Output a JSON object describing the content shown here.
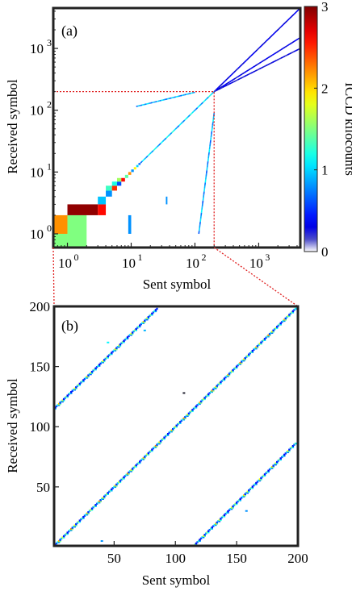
{
  "chart_data": [
    {
      "type": "heatmap",
      "panel_label": "(a)",
      "xlabel": "Sent symbol",
      "ylabel": "Received symbol",
      "x_scale": "log",
      "y_scale": "log",
      "xlim": [
        0.6,
        4500
      ],
      "ylim": [
        0.6,
        4500
      ],
      "x_ticks": [
        {
          "value": 1,
          "label": "10",
          "exp": "0"
        },
        {
          "value": 10,
          "label": "10",
          "exp": "1"
        },
        {
          "value": 100,
          "label": "10",
          "exp": "2"
        },
        {
          "value": 1000,
          "label": "10",
          "exp": "3"
        }
      ],
      "y_ticks": [
        {
          "value": 1,
          "label": "10",
          "exp": "0"
        },
        {
          "value": 10,
          "label": "10",
          "exp": "1"
        },
        {
          "value": 100,
          "label": "10",
          "exp": "2"
        },
        {
          "value": 1000,
          "label": "10",
          "exp": "3"
        }
      ],
      "zoom_box": {
        "x": [
          0.6,
          200
        ],
        "y": [
          0.6,
          200
        ]
      },
      "cells": [
        {
          "x": [
            0.6,
            1
          ],
          "y": [
            0.6,
            1
          ],
          "v": 1.5
        },
        {
          "x": [
            0.6,
            1
          ],
          "y": [
            1,
            2
          ],
          "v": 2.2
        },
        {
          "x": [
            1,
            2
          ],
          "y": [
            0.6,
            1
          ],
          "v": 1.5
        },
        {
          "x": [
            1,
            2
          ],
          "y": [
            1,
            2
          ],
          "v": 1.5
        },
        {
          "x": [
            1,
            3
          ],
          "y": [
            2,
            3
          ],
          "v": 2.95
        },
        {
          "x": [
            3,
            4
          ],
          "y": [
            2,
            3
          ],
          "v": 2.6
        },
        {
          "x": [
            3,
            4
          ],
          "y": [
            3,
            4
          ],
          "v": 0.95
        },
        {
          "x": [
            4,
            5
          ],
          "y": [
            4,
            5
          ],
          "v": 0.8
        },
        {
          "x": [
            4,
            5
          ],
          "y": [
            5,
            6
          ],
          "v": 1.3
        },
        {
          "x": [
            5,
            6
          ],
          "y": [
            5,
            6
          ],
          "v": 2.5
        },
        {
          "x": [
            5,
            6
          ],
          "y": [
            6,
            7
          ],
          "v": 1.2
        },
        {
          "x": [
            6,
            7
          ],
          "y": [
            6,
            7
          ],
          "v": 0.6
        },
        {
          "x": [
            6,
            7
          ],
          "y": [
            7,
            8
          ],
          "v": 1.6
        },
        {
          "x": [
            7,
            8
          ],
          "y": [
            7,
            8
          ],
          "v": 2.6
        },
        {
          "x": [
            8,
            9
          ],
          "y": [
            8,
            9
          ],
          "v": 1.4
        },
        {
          "x": [
            9,
            10
          ],
          "y": [
            9,
            10
          ],
          "v": 2.2
        },
        {
          "x": [
            10,
            11
          ],
          "y": [
            10,
            11
          ],
          "v": 0.8
        },
        {
          "x": [
            11,
            12
          ],
          "y": [
            11,
            12
          ],
          "v": 1.9
        },
        {
          "x": [
            12,
            13
          ],
          "y": [
            12,
            13
          ],
          "v": 1.0
        },
        {
          "x": [
            13,
            14
          ],
          "y": [
            13,
            14
          ],
          "v": 0.7
        },
        {
          "x": [
            9,
            10
          ],
          "y": [
            1,
            2
          ],
          "v": 0.8
        },
        {
          "x": [
            35,
            37
          ],
          "y": [
            3,
            4
          ],
          "v": 0.8
        }
      ],
      "diagonal_segments": [
        {
          "from": [
            14,
            14
          ],
          "to": [
            200,
            200
          ],
          "v": 1.0
        },
        {
          "from": [
            200,
            200
          ],
          "to": [
            4500,
            4500
          ],
          "v": 0.3
        },
        {
          "from": [
            200,
            200
          ],
          "to": [
            4500,
            1500
          ],
          "v": 0.3
        },
        {
          "from": [
            200,
            200
          ],
          "to": [
            4500,
            1000
          ],
          "v": 0.25
        },
        {
          "from": [
            12,
            115
          ],
          "to": [
            100,
            195
          ],
          "v": 0.9
        },
        {
          "from": [
            115,
            1
          ],
          "to": [
            200,
            90
          ],
          "v": 0.9
        }
      ],
      "colorbar": {
        "label": "ICCD kilocounts",
        "range": [
          0,
          3
        ],
        "ticks": [
          "0",
          "1",
          "2",
          "3"
        ],
        "colormap": "jet with white at zero"
      }
    },
    {
      "type": "heatmap",
      "panel_label": "(b)",
      "xlabel": "Sent symbol",
      "ylabel": "Received symbol",
      "xlim": [
        1,
        200
      ],
      "ylim": [
        1,
        200
      ],
      "x_ticks": [
        "50",
        "100",
        "150",
        "200"
      ],
      "y_ticks": [
        "50",
        "100",
        "150",
        "200"
      ],
      "bands": [
        {
          "from": [
            2,
            2
          ],
          "to": [
            198,
            198
          ],
          "v": 1.0
        },
        {
          "from": [
            1,
            115
          ],
          "to": [
            85,
            198
          ],
          "v": 0.9
        },
        {
          "from": [
            115,
            1
          ],
          "to": [
            198,
            86
          ],
          "v": 0.9
        }
      ],
      "outliers": [
        {
          "x": 107,
          "y": 128,
          "v": 0.1
        },
        {
          "x": 40,
          "y": 5,
          "v": 0.8
        },
        {
          "x": 158,
          "y": 30,
          "v": 0.8
        },
        {
          "x": 45,
          "y": 170,
          "v": 1.1
        },
        {
          "x": 75,
          "y": 180,
          "v": 0.9
        }
      ]
    }
  ]
}
